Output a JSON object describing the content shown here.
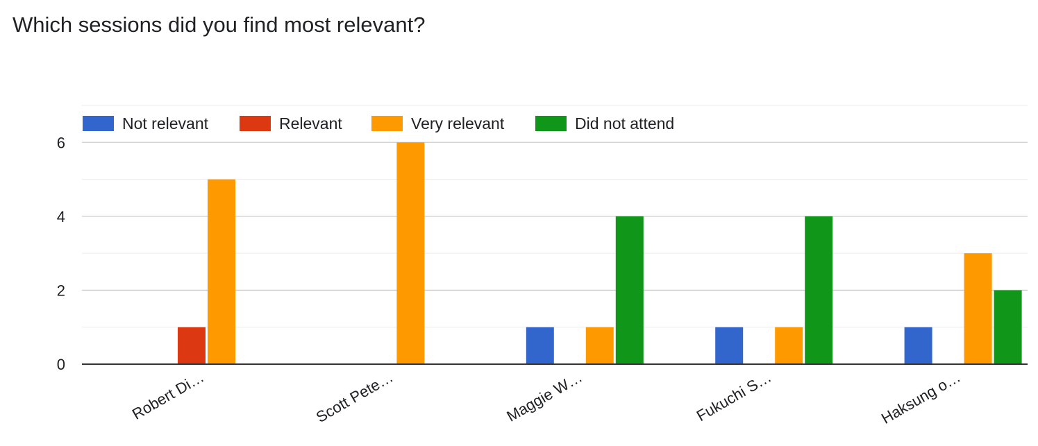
{
  "question": {
    "title": "Which sessions did you find most relevant?"
  },
  "colors": {
    "not_relevant": "#3366cc",
    "relevant": "#dc3912",
    "very_relevant": "#ff9900",
    "did_not_attend": "#109618",
    "gridline": "#cccccc",
    "minor_gridline": "#ebebeb",
    "axis": "#333333",
    "label_text": "#202124"
  },
  "chart_data": {
    "type": "bar",
    "title": "",
    "xlabel": "",
    "ylabel": "",
    "ylim": [
      0,
      7
    ],
    "y_ticks": [
      0,
      2,
      4,
      6
    ],
    "minor_gridlines": [
      1,
      3,
      5,
      7
    ],
    "grid": true,
    "legend_position": "top",
    "categories": [
      "Robert Di…",
      "Scott Pete…",
      "Maggie W…",
      "Fukuchi S…",
      "Haksung o…"
    ],
    "series": [
      {
        "name": "Not relevant",
        "color": "#3366cc",
        "values": [
          0,
          0,
          1,
          1,
          1
        ]
      },
      {
        "name": "Relevant",
        "color": "#dc3912",
        "values": [
          1,
          0,
          0,
          0,
          0
        ]
      },
      {
        "name": "Very relevant",
        "color": "#ff9900",
        "values": [
          5,
          6,
          1,
          1,
          3
        ]
      },
      {
        "name": "Did not attend",
        "color": "#109618",
        "values": [
          0,
          0,
          4,
          4,
          2
        ]
      }
    ]
  }
}
